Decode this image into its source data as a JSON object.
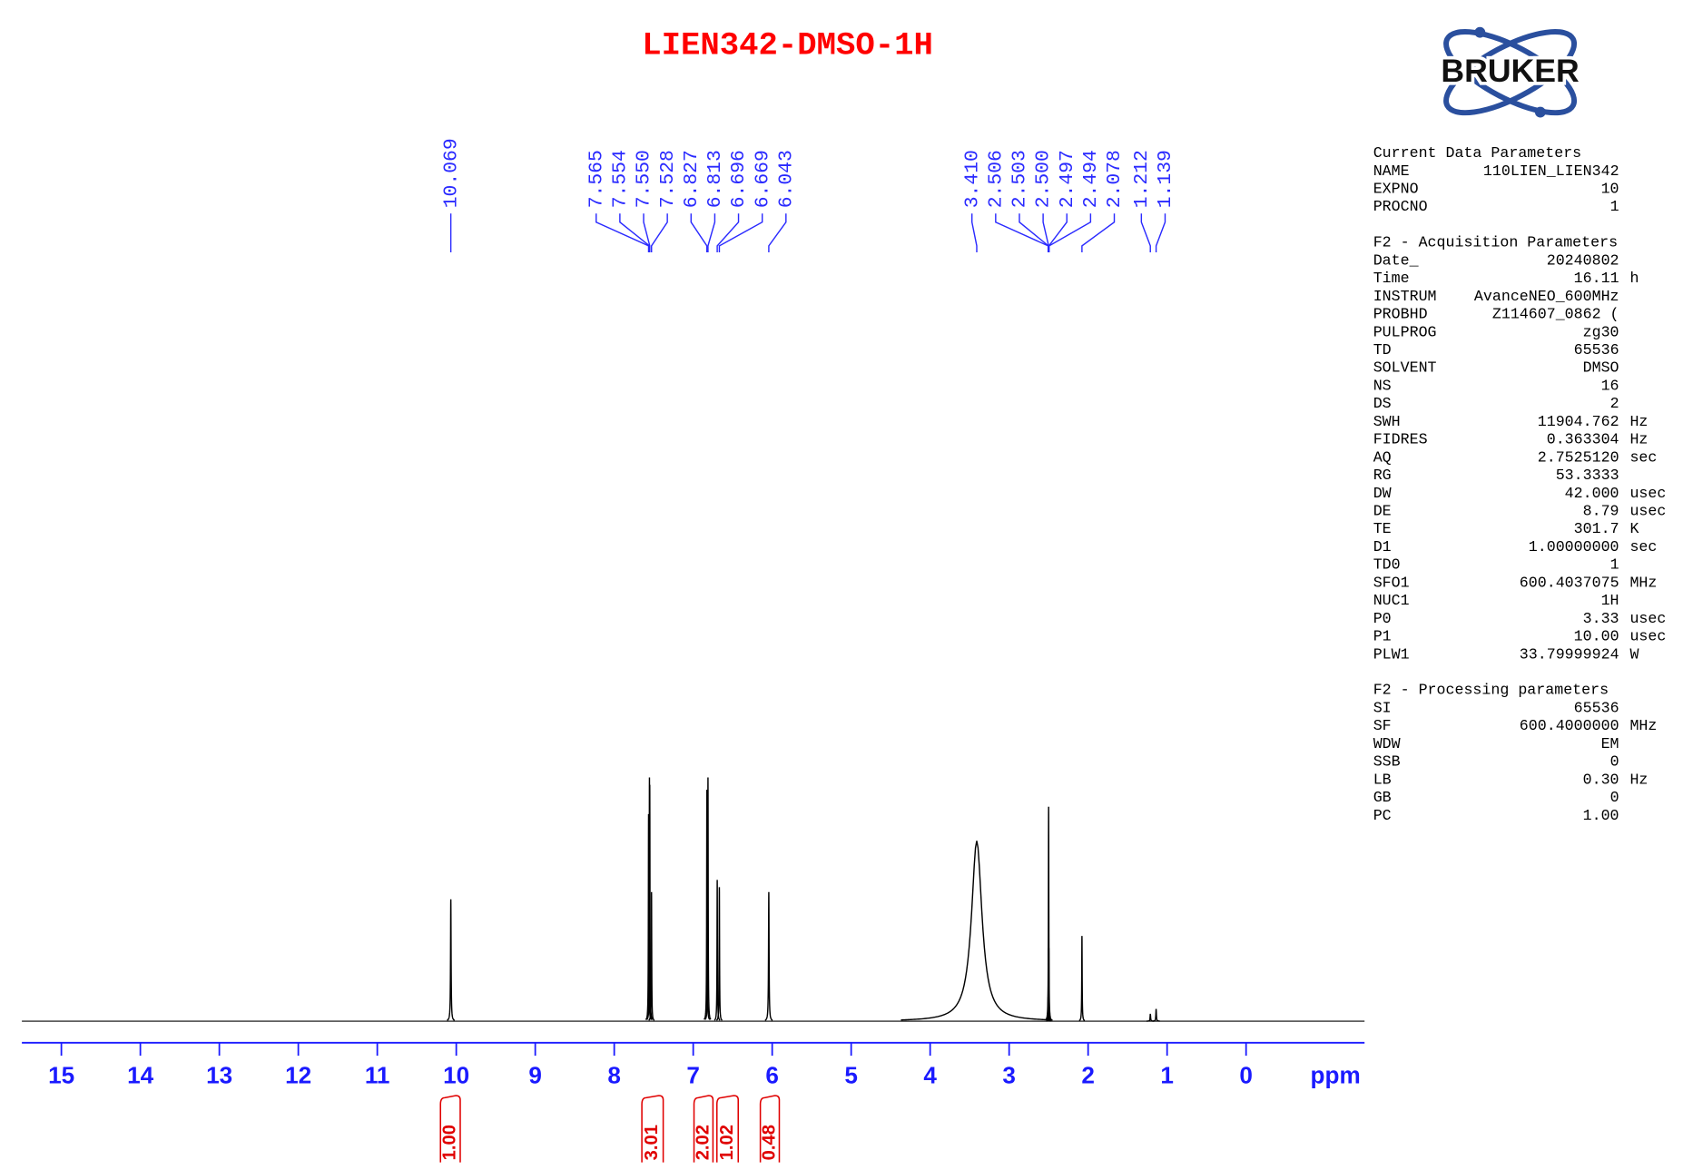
{
  "chart_data": {
    "type": "spectrum",
    "title": "LIEN342-DMSO-1H",
    "xlabel": "ppm",
    "xlim": [
      15.5,
      -1.5
    ],
    "xticks": [
      15,
      14,
      13,
      12,
      11,
      10,
      9,
      8,
      7,
      6,
      5,
      4,
      3,
      2,
      1,
      0
    ],
    "ylim": [
      0,
      100
    ],
    "color": "#000000",
    "peaks": {
      "x": [
        10.069,
        7.565,
        7.554,
        7.55,
        7.528,
        6.827,
        6.813,
        6.696,
        6.669,
        6.043,
        3.41,
        2.506,
        2.503,
        2.5,
        2.497,
        2.494,
        2.078,
        1.212,
        1.139
      ],
      "labels": [
        "10.069",
        "7.565",
        "7.554",
        "7.550",
        "7.528",
        "6.827",
        "6.813",
        "6.696",
        "6.669",
        "6.043",
        "3.410",
        "2.506",
        "2.503",
        "2.500",
        "2.497",
        "2.494",
        "2.078",
        "1.212",
        "1.139"
      ],
      "values": [
        50,
        85,
        100,
        97,
        53,
        95,
        100,
        58,
        55,
        53,
        74,
        10,
        30,
        88,
        30,
        10,
        35,
        3,
        5
      ],
      "widths": [
        0.004,
        0.003,
        0.003,
        0.003,
        0.003,
        0.003,
        0.003,
        0.003,
        0.003,
        0.004,
        0.08,
        0.002,
        0.002,
        0.003,
        0.002,
        0.002,
        0.003,
        0.004,
        0.004
      ]
    },
    "integrals": {
      "ranges": [
        [
          10.2,
          9.95
        ],
        [
          7.65,
          7.38
        ],
        [
          6.99,
          6.75
        ],
        [
          6.7,
          6.43
        ],
        [
          6.15,
          5.91
        ]
      ],
      "values": [
        1,
        3.01,
        2.02,
        1.02,
        0.48
      ],
      "value_labels": [
        "1.00",
        "3.01",
        "2.02",
        "1.02",
        "0.48"
      ]
    }
  },
  "logo": "BRUKER",
  "parameters": [
    {
      "title": "Current Data Parameters",
      "rows": [
        [
          "NAME",
          "110LIEN_LIEN342"
        ],
        [
          "EXPNO",
          "10"
        ],
        [
          "PROCNO",
          "1"
        ]
      ]
    },
    {
      "title": "F2 - Acquisition Parameters",
      "rows": [
        [
          "Date_",
          "20240802"
        ],
        [
          "Time",
          "16.11",
          "h"
        ],
        [
          "INSTRUM",
          "AvanceNEO_600MHz"
        ],
        [
          "PROBHD",
          "Z114607_0862 ("
        ],
        [
          "PULPROG",
          "zg30"
        ],
        [
          "TD",
          "65536"
        ],
        [
          "SOLVENT",
          "DMSO"
        ],
        [
          "NS",
          "16"
        ],
        [
          "DS",
          "2"
        ],
        [
          "SWH",
          "11904.762",
          "Hz"
        ],
        [
          "FIDRES",
          "0.363304",
          "Hz"
        ],
        [
          "AQ",
          "2.7525120",
          "sec"
        ],
        [
          "RG",
          "53.3333"
        ],
        [
          "DW",
          "42.000",
          "usec"
        ],
        [
          "DE",
          "8.79",
          "usec"
        ],
        [
          "TE",
          "301.7",
          "K"
        ],
        [
          "D1",
          "1.00000000",
          "sec"
        ],
        [
          "TD0",
          "1"
        ],
        [
          "SFO1",
          "600.4037075",
          "MHz"
        ],
        [
          "NUC1",
          "1H"
        ],
        [
          "P0",
          "3.33",
          "usec"
        ],
        [
          "P1",
          "10.00",
          "usec"
        ],
        [
          "PLW1",
          "33.79999924",
          "W"
        ]
      ]
    },
    {
      "title": "F2 - Processing parameters",
      "rows": [
        [
          "SI",
          "65536"
        ],
        [
          "SF",
          "600.4000000",
          "MHz"
        ],
        [
          "WDW",
          "EM"
        ],
        [
          "SSB",
          "0"
        ],
        [
          "LB",
          "0.30",
          "Hz"
        ],
        [
          "GB",
          "0"
        ],
        [
          "PC",
          "1.00"
        ]
      ]
    }
  ]
}
